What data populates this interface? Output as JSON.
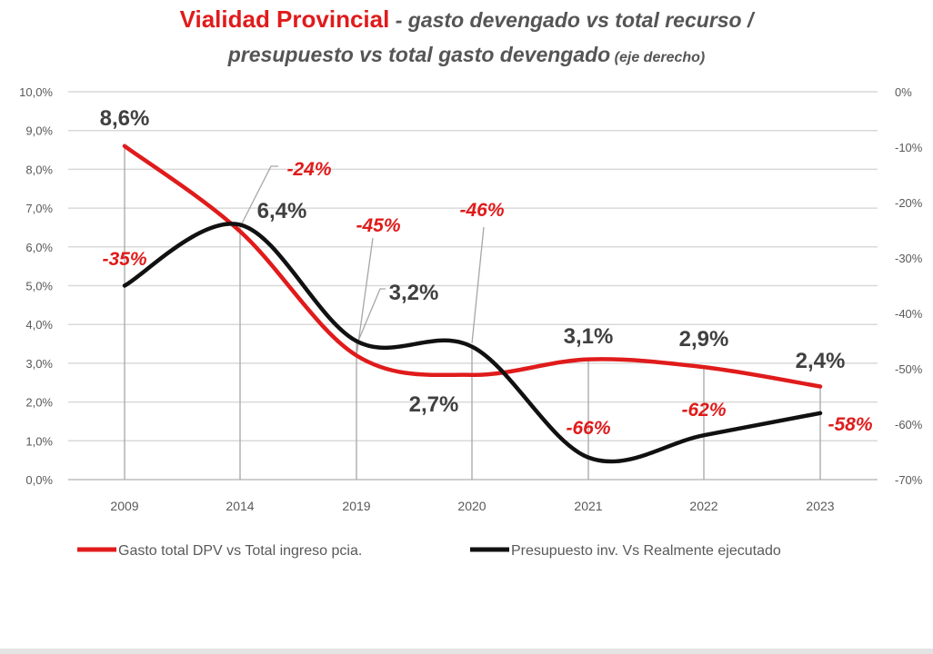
{
  "chart_data": {
    "type": "line",
    "title_main": "Vialidad Provincial",
    "title_rest_line1": " - gasto devengado vs total recurso /",
    "title_line2": "presupuesto  vs total gasto devengado",
    "title_note": " (eje derecho)",
    "categories": [
      "2009",
      "2014",
      "2019",
      "2020",
      "2021",
      "2022",
      "2023"
    ],
    "left_axis": {
      "ylim": [
        0,
        10
      ],
      "ticks": [
        "0,0%",
        "1,0%",
        "2,0%",
        "3,0%",
        "4,0%",
        "5,0%",
        "6,0%",
        "7,0%",
        "8,0%",
        "9,0%",
        "10,0%"
      ]
    },
    "right_axis": {
      "ylim": [
        -70,
        0
      ],
      "ticks": [
        "-70%",
        "-60%",
        "-50%",
        "-40%",
        "-30%",
        "-20%",
        "-10%",
        "0%"
      ]
    },
    "grid": true,
    "legend_position": "bottom",
    "series": [
      {
        "name": "Gasto total DPV vs Total ingreso pcia.",
        "axis": "left",
        "color": "#e01b1b",
        "values": [
          8.6,
          6.4,
          3.2,
          2.7,
          3.1,
          2.9,
          2.4
        ],
        "labels": [
          "8,6%",
          "6,4%",
          "3,2%",
          "2,7%",
          "3,1%",
          "2,9%",
          "2,4%"
        ]
      },
      {
        "name": "Presupuesto inv. Vs Realmente ejecutado",
        "axis": "right",
        "color": "#111111",
        "values": [
          -35,
          -24,
          -45,
          -46,
          -66,
          -62,
          -58
        ],
        "labels": [
          "-35%",
          "-24%",
          "-45%",
          "-46%",
          "-66%",
          "-62%",
          "-58%"
        ]
      }
    ]
  }
}
